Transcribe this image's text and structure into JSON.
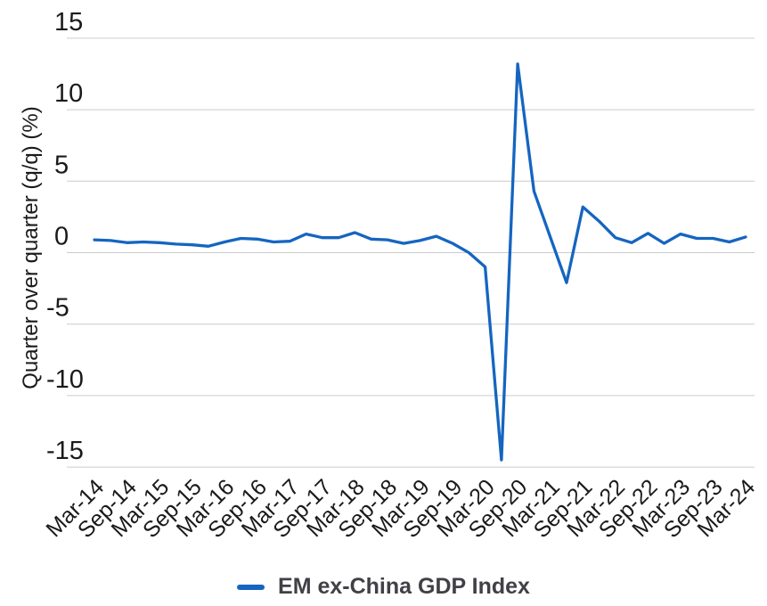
{
  "chart_data": {
    "type": "line",
    "title": "",
    "xlabel": "",
    "ylabel": "Quarter over quarter (q/q) (%)",
    "ylim": [
      -15,
      15
    ],
    "yticks": [
      15,
      10,
      5,
      0,
      -5,
      -10,
      -15
    ],
    "ytick_labels": [
      "15",
      "10",
      "5",
      "0",
      "-5",
      "-10",
      "-15"
    ],
    "grid": "horizontal",
    "legend_position": "bottom-center",
    "x": [
      "Mar-14",
      "Jun-14",
      "Sep-14",
      "Dec-14",
      "Mar-15",
      "Jun-15",
      "Sep-15",
      "Dec-15",
      "Mar-16",
      "Jun-16",
      "Sep-16",
      "Dec-16",
      "Mar-17",
      "Jun-17",
      "Sep-17",
      "Dec-17",
      "Mar-18",
      "Jun-18",
      "Sep-18",
      "Dec-18",
      "Mar-19",
      "Jun-19",
      "Sep-19",
      "Dec-19",
      "Mar-20",
      "Jun-20",
      "Sep-20",
      "Dec-20",
      "Mar-21",
      "Jun-21",
      "Sep-21",
      "Dec-21",
      "Mar-22",
      "Jun-22",
      "Sep-22",
      "Dec-22",
      "Mar-23",
      "Jun-23",
      "Sep-23",
      "Dec-23",
      "Mar-24"
    ],
    "x_tick_labels": [
      "Mar-14",
      "Sep-14",
      "Mar-15",
      "Sep-15",
      "Mar-16",
      "Sep-16",
      "Mar-17",
      "Sep-17",
      "Mar-18",
      "Sep-18",
      "Mar-19",
      "Sep-19",
      "Mar-20",
      "Sep-20",
      "Mar-21",
      "Sep-21",
      "Mar-22",
      "Sep-22",
      "Mar-23",
      "Sep-23",
      "Mar-24"
    ],
    "x_tick_every": 2,
    "series": [
      {
        "name": "EM ex-China GDP Index",
        "color": "#1565c0",
        "values": [
          0.9,
          0.85,
          0.7,
          0.75,
          0.7,
          0.6,
          0.55,
          0.45,
          0.75,
          1.0,
          0.95,
          0.75,
          0.8,
          1.3,
          1.05,
          1.05,
          1.4,
          0.95,
          0.9,
          0.65,
          0.85,
          1.15,
          0.65,
          0.0,
          -1.0,
          -14.5,
          13.2,
          4.3,
          1.1,
          -2.1,
          3.2,
          2.2,
          1.05,
          0.7,
          1.35,
          0.65,
          1.3,
          1.0,
          1.0,
          0.75,
          1.1
        ]
      }
    ]
  },
  "legend": {
    "items": [
      {
        "label": "EM ex-China GDP Index",
        "color": "#1565c0"
      }
    ]
  },
  "colors": {
    "line": "#1565c0",
    "gridline": "#cccccc",
    "tick_text": "#1a1a1a",
    "legend_text": "#404046",
    "background": "#ffffff"
  }
}
